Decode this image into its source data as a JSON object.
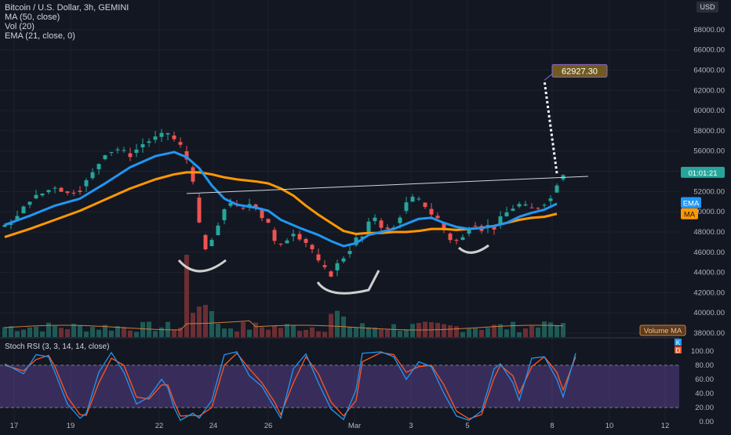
{
  "header": {
    "symbol_line": "Bitcoin / U.S. Dollar, 3h, GEMINI",
    "indicator_1": "MA (50, close)",
    "indicator_2": "Vol (20)",
    "indicator_3": "EMA (21, close, 0)",
    "currency": "USD"
  },
  "price_axis": {
    "ticks": [
      "68000.00",
      "66000.00",
      "64000.00",
      "62000.00",
      "60000.00",
      "58000.00",
      "56000.00",
      "54000.00",
      "52000.00",
      "50000.00",
      "48000.00",
      "46000.00",
      "44000.00",
      "42000.00",
      "40000.00",
      "38000.00"
    ],
    "current_label": "01:01:21",
    "ema_tag": "EMA",
    "ma_tag": "MA",
    "volume_ma_tag": "Volume MA",
    "target_label": "62927.30"
  },
  "stoch": {
    "title": "Stoch RSI (3, 3, 14, 14, close)",
    "ticks": [
      "100.00",
      "80.00",
      "60.00",
      "40.00",
      "20.00",
      "0.00"
    ],
    "k_tag": "K",
    "d_tag": "D"
  },
  "time_axis": {
    "labels": [
      "17",
      "19",
      "22",
      "24",
      "26",
      "Mar",
      "3",
      "5",
      "8",
      "10",
      "12"
    ]
  },
  "colors": {
    "background": "#131722",
    "up": "#26a69a",
    "down": "#ef5350",
    "ema": "#2196f3",
    "ma": "#ff9800",
    "stoch_k": "#2196f3",
    "stoch_d": "#ff5722",
    "stoch_band": "#7e57c2",
    "target": "#705a1f"
  },
  "chart_data": {
    "type": "candlestick",
    "x_axis_ticks": [
      "17",
      "19",
      "22",
      "24",
      "26",
      "Mar",
      "3",
      "5",
      "8",
      "10",
      "12"
    ],
    "y_range": [
      38000,
      69000
    ],
    "close_path": [
      [
        0,
        48500
      ],
      [
        2,
        49500
      ],
      [
        4,
        51200
      ],
      [
        6,
        51800
      ],
      [
        8,
        52500
      ],
      [
        10,
        51800
      ],
      [
        12,
        52200
      ],
      [
        14,
        53800
      ],
      [
        16,
        55800
      ],
      [
        18,
        56200
      ],
      [
        20,
        55600
      ],
      [
        22,
        56700
      ],
      [
        24,
        57300
      ],
      [
        26,
        57800
      ],
      [
        28,
        56500
      ],
      [
        29,
        55200
      ],
      [
        30,
        53200
      ],
      [
        31,
        48700
      ],
      [
        32,
        46200
      ],
      [
        33,
        47200
      ],
      [
        34,
        48400
      ],
      [
        35,
        50300
      ],
      [
        36,
        51000
      ],
      [
        37,
        50500
      ],
      [
        38,
        50200
      ],
      [
        39,
        50800
      ],
      [
        40,
        50600
      ],
      [
        41,
        49500
      ],
      [
        42,
        49000
      ],
      [
        43,
        47000
      ],
      [
        44,
        46600
      ],
      [
        45,
        47300
      ],
      [
        46,
        48000
      ],
      [
        47,
        47500
      ],
      [
        48,
        47000
      ],
      [
        49,
        46300
      ],
      [
        50,
        45000
      ],
      [
        51,
        44300
      ],
      [
        52,
        43800
      ],
      [
        53,
        44800
      ],
      [
        54,
        45500
      ],
      [
        55,
        46300
      ],
      [
        56,
        47300
      ],
      [
        57,
        47500
      ],
      [
        58,
        48800
      ],
      [
        59,
        49500
      ],
      [
        60,
        48600
      ],
      [
        61,
        48200
      ],
      [
        62,
        48400
      ],
      [
        63,
        49600
      ],
      [
        64,
        50800
      ],
      [
        65,
        51300
      ],
      [
        66,
        51100
      ],
      [
        67,
        50600
      ],
      [
        68,
        49800
      ],
      [
        69,
        49300
      ],
      [
        70,
        48200
      ],
      [
        71,
        47300
      ],
      [
        72,
        47100
      ],
      [
        73,
        47400
      ],
      [
        74,
        48500
      ],
      [
        75,
        48800
      ],
      [
        76,
        48300
      ],
      [
        77,
        48600
      ],
      [
        78,
        48400
      ],
      [
        79,
        49300
      ],
      [
        80,
        49900
      ],
      [
        81,
        50400
      ],
      [
        82,
        50700
      ],
      [
        83,
        50500
      ],
      [
        84,
        50300
      ],
      [
        85,
        50500
      ],
      [
        86,
        50900
      ],
      [
        87,
        51300
      ],
      [
        88,
        52800
      ],
      [
        89,
        53800
      ]
    ],
    "ema_21": [
      [
        0,
        48700
      ],
      [
        4,
        49600
      ],
      [
        8,
        50600
      ],
      [
        12,
        51300
      ],
      [
        16,
        52800
      ],
      [
        20,
        54400
      ],
      [
        24,
        55500
      ],
      [
        27,
        55900
      ],
      [
        29,
        55400
      ],
      [
        31,
        54300
      ],
      [
        33,
        52600
      ],
      [
        35,
        51300
      ],
      [
        37,
        50700
      ],
      [
        40,
        50400
      ],
      [
        42,
        50100
      ],
      [
        44,
        49200
      ],
      [
        47,
        48400
      ],
      [
        50,
        47700
      ],
      [
        52,
        47100
      ],
      [
        54,
        46600
      ],
      [
        56,
        46900
      ],
      [
        58,
        47700
      ],
      [
        60,
        48000
      ],
      [
        62,
        48300
      ],
      [
        64,
        48800
      ],
      [
        66,
        49300
      ],
      [
        68,
        49400
      ],
      [
        70,
        48900
      ],
      [
        72,
        48500
      ],
      [
        74,
        48300
      ],
      [
        76,
        48400
      ],
      [
        78,
        48600
      ],
      [
        80,
        48900
      ],
      [
        82,
        49500
      ],
      [
        84,
        49900
      ],
      [
        86,
        50200
      ],
      [
        88,
        50800
      ]
    ],
    "ma_50": [
      [
        0,
        47500
      ],
      [
        4,
        48300
      ],
      [
        8,
        49200
      ],
      [
        12,
        50100
      ],
      [
        16,
        51200
      ],
      [
        20,
        52300
      ],
      [
        24,
        53200
      ],
      [
        27,
        53700
      ],
      [
        29,
        53900
      ],
      [
        31,
        53900
      ],
      [
        33,
        53700
      ],
      [
        35,
        53400
      ],
      [
        37,
        53200
      ],
      [
        40,
        53000
      ],
      [
        42,
        52800
      ],
      [
        44,
        52300
      ],
      [
        46,
        51600
      ],
      [
        48,
        50600
      ],
      [
        50,
        49700
      ],
      [
        52,
        48900
      ],
      [
        54,
        48100
      ],
      [
        56,
        47800
      ],
      [
        58,
        47900
      ],
      [
        60,
        47900
      ],
      [
        62,
        48000
      ],
      [
        64,
        48000
      ],
      [
        66,
        48100
      ],
      [
        68,
        48300
      ],
      [
        70,
        48300
      ],
      [
        72,
        48200
      ],
      [
        74,
        48300
      ],
      [
        76,
        48400
      ],
      [
        78,
        48600
      ],
      [
        80,
        48900
      ],
      [
        82,
        49200
      ],
      [
        84,
        49400
      ],
      [
        86,
        49500
      ],
      [
        88,
        49800
      ]
    ],
    "trendline": {
      "from": [
        29,
        51800
      ],
      "to": [
        93,
        53500
      ]
    },
    "target_projection": {
      "from": [
        88,
        53800
      ],
      "to": [
        86,
        63000
      ],
      "value": 62927.3
    },
    "annotations": [
      "left shoulder arc near 45000",
      "head arc near 42000",
      "right shoulder arc near 46000"
    ],
    "volume_ma_shown": true,
    "stoch_rsi": {
      "levels": [
        20,
        80
      ],
      "range": [
        0,
        100
      ],
      "k_points": [
        [
          0,
          82
        ],
        [
          3,
          68
        ],
        [
          5,
          95
        ],
        [
          7,
          92
        ],
        [
          8,
          70
        ],
        [
          10,
          25
        ],
        [
          12,
          5
        ],
        [
          13,
          12
        ],
        [
          15,
          70
        ],
        [
          17,
          98
        ],
        [
          19,
          70
        ],
        [
          21,
          25
        ],
        [
          23,
          35
        ],
        [
          25,
          60
        ],
        [
          26,
          48
        ],
        [
          27,
          20
        ],
        [
          28,
          2
        ],
        [
          30,
          12
        ],
        [
          31,
          5
        ],
        [
          33,
          30
        ],
        [
          35,
          95
        ],
        [
          37,
          99
        ],
        [
          39,
          65
        ],
        [
          41,
          50
        ],
        [
          43,
          20
        ],
        [
          44,
          5
        ],
        [
          46,
          75
        ],
        [
          48,
          96
        ],
        [
          50,
          55
        ],
        [
          52,
          18
        ],
        [
          54,
          3
        ],
        [
          56,
          45
        ],
        [
          57,
          97
        ],
        [
          60,
          99
        ],
        [
          62,
          92
        ],
        [
          64,
          60
        ],
        [
          66,
          85
        ],
        [
          68,
          78
        ],
        [
          70,
          40
        ],
        [
          72,
          8
        ],
        [
          74,
          2
        ],
        [
          76,
          15
        ],
        [
          78,
          75
        ],
        [
          79,
          82
        ],
        [
          81,
          55
        ],
        [
          82,
          30
        ],
        [
          84,
          90
        ],
        [
          86,
          92
        ],
        [
          88,
          60
        ],
        [
          89,
          35
        ],
        [
          91,
          97
        ]
      ],
      "d_points": [
        [
          0,
          80
        ],
        [
          3,
          72
        ],
        [
          5,
          88
        ],
        [
          7,
          94
        ],
        [
          8,
          78
        ],
        [
          10,
          35
        ],
        [
          12,
          10
        ],
        [
          13,
          9
        ],
        [
          15,
          55
        ],
        [
          17,
          90
        ],
        [
          19,
          80
        ],
        [
          21,
          35
        ],
        [
          23,
          32
        ],
        [
          25,
          52
        ],
        [
          26,
          52
        ],
        [
          27,
          28
        ],
        [
          28,
          8
        ],
        [
          30,
          9
        ],
        [
          31,
          8
        ],
        [
          33,
          20
        ],
        [
          35,
          80
        ],
        [
          37,
          97
        ],
        [
          39,
          75
        ],
        [
          41,
          55
        ],
        [
          43,
          28
        ],
        [
          44,
          10
        ],
        [
          46,
          55
        ],
        [
          48,
          92
        ],
        [
          50,
          68
        ],
        [
          52,
          28
        ],
        [
          54,
          8
        ],
        [
          56,
          30
        ],
        [
          57,
          85
        ],
        [
          60,
          98
        ],
        [
          62,
          95
        ],
        [
          64,
          70
        ],
        [
          66,
          78
        ],
        [
          68,
          80
        ],
        [
          70,
          52
        ],
        [
          72,
          15
        ],
        [
          74,
          4
        ],
        [
          76,
          10
        ],
        [
          78,
          62
        ],
        [
          79,
          80
        ],
        [
          81,
          65
        ],
        [
          82,
          40
        ],
        [
          84,
          78
        ],
        [
          86,
          92
        ],
        [
          88,
          70
        ],
        [
          89,
          45
        ],
        [
          91,
          92
        ]
      ]
    }
  }
}
